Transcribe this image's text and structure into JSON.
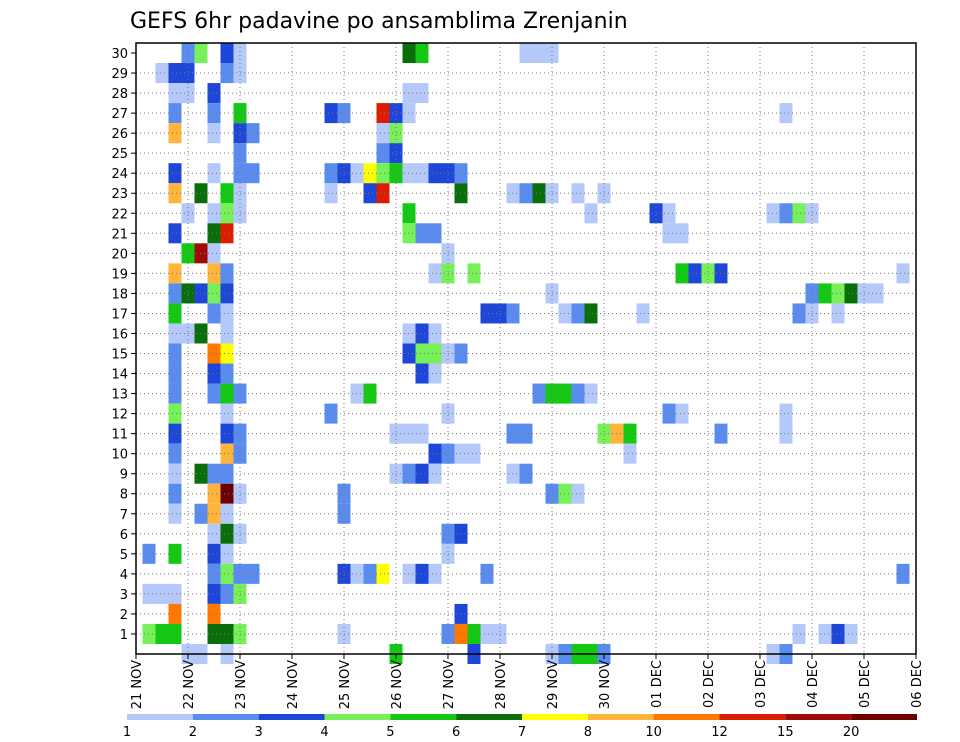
{
  "chart_data": {
    "type": "heatmap",
    "title": "GEFS 6hr padavine po ansamblima Zrenjanin",
    "xlabel": "",
    "ylabel": "",
    "x_labels": [
      "21 NOV",
      "22 NOV",
      "23 NOV",
      "24 NOV",
      "25 NOV",
      "26 NOV",
      "27 NOV",
      "28 NOV",
      "29 NOV",
      "30 NOV",
      "01 DEC",
      "02 DEC",
      "03 DEC",
      "04 DEC",
      "05 DEC",
      "06 DEC"
    ],
    "y_labels": [
      "1",
      "2",
      "3",
      "4",
      "5",
      "6",
      "7",
      "8",
      "9",
      "10",
      "11",
      "12",
      "13",
      "14",
      "15",
      "16",
      "17",
      "18",
      "19",
      "20",
      "21",
      "22",
      "23",
      "24",
      "25",
      "26",
      "27",
      "28",
      "29",
      "30"
    ],
    "time_steps_per_day": 4,
    "grid": true,
    "colorbar": {
      "labels": [
        "1",
        "2",
        "3",
        "4",
        "5",
        "6",
        "7",
        "8",
        "10",
        "12",
        "15",
        "20"
      ],
      "colors": [
        "#b4c8fa",
        "#5a8cf0",
        "#1e46d7",
        "#78f05a",
        "#14c814",
        "#0a6e0a",
        "#ffff00",
        "#ffb43c",
        "#ff7800",
        "#dc1e00",
        "#a00a0a",
        "#6e0000"
      ]
    },
    "cells": [
      {
        "m": 30,
        "t": 4,
        "c": 2
      },
      {
        "m": 30,
        "t": 5,
        "c": 4
      },
      {
        "m": 30,
        "t": 7,
        "c": 3
      },
      {
        "m": 30,
        "t": 8,
        "c": 1
      },
      {
        "m": 30,
        "t": 21,
        "c": 6
      },
      {
        "m": 30,
        "t": 22,
        "c": 5
      },
      {
        "m": 30,
        "t": 30,
        "c": 1
      },
      {
        "m": 30,
        "t": 31,
        "c": 1
      },
      {
        "m": 30,
        "t": 32,
        "c": 1
      },
      {
        "m": 29,
        "t": 2,
        "c": 1
      },
      {
        "m": 29,
        "t": 3,
        "c": 3
      },
      {
        "m": 29,
        "t": 4,
        "c": 3
      },
      {
        "m": 29,
        "t": 7,
        "c": 2
      },
      {
        "m": 29,
        "t": 8,
        "c": 1
      },
      {
        "m": 28,
        "t": 3,
        "c": 1
      },
      {
        "m": 28,
        "t": 4,
        "c": 1
      },
      {
        "m": 28,
        "t": 6,
        "c": 3
      },
      {
        "m": 28,
        "t": 21,
        "c": 1
      },
      {
        "m": 28,
        "t": 22,
        "c": 1
      },
      {
        "m": 27,
        "t": 3,
        "c": 2
      },
      {
        "m": 27,
        "t": 6,
        "c": 2
      },
      {
        "m": 27,
        "t": 8,
        "c": 5
      },
      {
        "m": 27,
        "t": 15,
        "c": 3
      },
      {
        "m": 27,
        "t": 16,
        "c": 2
      },
      {
        "m": 27,
        "t": 19,
        "c": 10
      },
      {
        "m": 27,
        "t": 20,
        "c": 3
      },
      {
        "m": 27,
        "t": 21,
        "c": 1
      },
      {
        "m": 27,
        "t": 50,
        "c": 1
      },
      {
        "m": 26,
        "t": 3,
        "c": 8
      },
      {
        "m": 26,
        "t": 6,
        "c": 1
      },
      {
        "m": 26,
        "t": 8,
        "c": 3
      },
      {
        "m": 26,
        "t": 9,
        "c": 2
      },
      {
        "m": 26,
        "t": 19,
        "c": 1
      },
      {
        "m": 26,
        "t": 20,
        "c": 4
      },
      {
        "m": 25,
        "t": 8,
        "c": 2
      },
      {
        "m": 25,
        "t": 19,
        "c": 2
      },
      {
        "m": 25,
        "t": 20,
        "c": 3
      },
      {
        "m": 24,
        "t": 3,
        "c": 3
      },
      {
        "m": 24,
        "t": 6,
        "c": 1
      },
      {
        "m": 24,
        "t": 8,
        "c": 2
      },
      {
        "m": 24,
        "t": 9,
        "c": 2
      },
      {
        "m": 24,
        "t": 15,
        "c": 2
      },
      {
        "m": 24,
        "t": 16,
        "c": 3
      },
      {
        "m": 24,
        "t": 17,
        "c": 1
      },
      {
        "m": 24,
        "t": 18,
        "c": 7
      },
      {
        "m": 24,
        "t": 19,
        "c": 4
      },
      {
        "m": 24,
        "t": 20,
        "c": 5
      },
      {
        "m": 24,
        "t": 21,
        "c": 1
      },
      {
        "m": 24,
        "t": 22,
        "c": 1
      },
      {
        "m": 24,
        "t": 23,
        "c": 3
      },
      {
        "m": 24,
        "t": 24,
        "c": 3
      },
      {
        "m": 24,
        "t": 25,
        "c": 2
      },
      {
        "m": 23,
        "t": 3,
        "c": 8
      },
      {
        "m": 23,
        "t": 5,
        "c": 6
      },
      {
        "m": 23,
        "t": 7,
        "c": 5
      },
      {
        "m": 23,
        "t": 8,
        "c": 1
      },
      {
        "m": 23,
        "t": 15,
        "c": 1
      },
      {
        "m": 23,
        "t": 18,
        "c": 3
      },
      {
        "m": 23,
        "t": 19,
        "c": 10
      },
      {
        "m": 23,
        "t": 25,
        "c": 6
      },
      {
        "m": 23,
        "t": 29,
        "c": 1
      },
      {
        "m": 23,
        "t": 30,
        "c": 2
      },
      {
        "m": 23,
        "t": 31,
        "c": 6
      },
      {
        "m": 23,
        "t": 32,
        "c": 1
      },
      {
        "m": 23,
        "t": 34,
        "c": 1
      },
      {
        "m": 23,
        "t": 36,
        "c": 1
      },
      {
        "m": 22,
        "t": 4,
        "c": 1
      },
      {
        "m": 22,
        "t": 6,
        "c": 1
      },
      {
        "m": 22,
        "t": 7,
        "c": 4
      },
      {
        "m": 22,
        "t": 8,
        "c": 1
      },
      {
        "m": 22,
        "t": 21,
        "c": 5
      },
      {
        "m": 22,
        "t": 35,
        "c": 1
      },
      {
        "m": 22,
        "t": 40,
        "c": 3
      },
      {
        "m": 22,
        "t": 41,
        "c": 1
      },
      {
        "m": 22,
        "t": 49,
        "c": 1
      },
      {
        "m": 22,
        "t": 50,
        "c": 2
      },
      {
        "m": 22,
        "t": 51,
        "c": 4
      },
      {
        "m": 22,
        "t": 52,
        "c": 1
      },
      {
        "m": 21,
        "t": 3,
        "c": 3
      },
      {
        "m": 21,
        "t": 6,
        "c": 6
      },
      {
        "m": 21,
        "t": 7,
        "c": 10
      },
      {
        "m": 21,
        "t": 21,
        "c": 4
      },
      {
        "m": 21,
        "t": 22,
        "c": 2
      },
      {
        "m": 21,
        "t": 23,
        "c": 2
      },
      {
        "m": 21,
        "t": 41,
        "c": 1
      },
      {
        "m": 21,
        "t": 42,
        "c": 1
      },
      {
        "m": 20,
        "t": 4,
        "c": 5
      },
      {
        "m": 20,
        "t": 5,
        "c": 11
      },
      {
        "m": 20,
        "t": 6,
        "c": 1
      },
      {
        "m": 20,
        "t": 24,
        "c": 1
      },
      {
        "m": 19,
        "t": 3,
        "c": 8
      },
      {
        "m": 19,
        "t": 6,
        "c": 8
      },
      {
        "m": 19,
        "t": 7,
        "c": 2
      },
      {
        "m": 19,
        "t": 23,
        "c": 1
      },
      {
        "m": 19,
        "t": 24,
        "c": 4
      },
      {
        "m": 19,
        "t": 26,
        "c": 4
      },
      {
        "m": 19,
        "t": 42,
        "c": 5
      },
      {
        "m": 19,
        "t": 43,
        "c": 3
      },
      {
        "m": 19,
        "t": 44,
        "c": 4
      },
      {
        "m": 19,
        "t": 45,
        "c": 3
      },
      {
        "m": 19,
        "t": 59,
        "c": 1
      },
      {
        "m": 18,
        "t": 3,
        "c": 2
      },
      {
        "m": 18,
        "t": 4,
        "c": 6
      },
      {
        "m": 18,
        "t": 5,
        "c": 3
      },
      {
        "m": 18,
        "t": 6,
        "c": 4
      },
      {
        "m": 18,
        "t": 7,
        "c": 3
      },
      {
        "m": 18,
        "t": 32,
        "c": 1
      },
      {
        "m": 18,
        "t": 52,
        "c": 2
      },
      {
        "m": 18,
        "t": 53,
        "c": 5
      },
      {
        "m": 18,
        "t": 54,
        "c": 4
      },
      {
        "m": 18,
        "t": 55,
        "c": 6
      },
      {
        "m": 18,
        "t": 56,
        "c": 1
      },
      {
        "m": 18,
        "t": 57,
        "c": 1
      },
      {
        "m": 17,
        "t": 3,
        "c": 5
      },
      {
        "m": 17,
        "t": 6,
        "c": 2
      },
      {
        "m": 17,
        "t": 7,
        "c": 1
      },
      {
        "m": 17,
        "t": 27,
        "c": 3
      },
      {
        "m": 17,
        "t": 28,
        "c": 3
      },
      {
        "m": 17,
        "t": 29,
        "c": 2
      },
      {
        "m": 17,
        "t": 33,
        "c": 1
      },
      {
        "m": 17,
        "t": 34,
        "c": 2
      },
      {
        "m": 17,
        "t": 35,
        "c": 6
      },
      {
        "m": 17,
        "t": 39,
        "c": 1
      },
      {
        "m": 17,
        "t": 51,
        "c": 2
      },
      {
        "m": 17,
        "t": 52,
        "c": 1
      },
      {
        "m": 17,
        "t": 54,
        "c": 1
      },
      {
        "m": 16,
        "t": 3,
        "c": 1
      },
      {
        "m": 16,
        "t": 4,
        "c": 1
      },
      {
        "m": 16,
        "t": 5,
        "c": 6
      },
      {
        "m": 16,
        "t": 7,
        "c": 1
      },
      {
        "m": 16,
        "t": 21,
        "c": 1
      },
      {
        "m": 16,
        "t": 22,
        "c": 3
      },
      {
        "m": 16,
        "t": 23,
        "c": 1
      },
      {
        "m": 15,
        "t": 3,
        "c": 2
      },
      {
        "m": 15,
        "t": 6,
        "c": 9
      },
      {
        "m": 15,
        "t": 7,
        "c": 7
      },
      {
        "m": 15,
        "t": 21,
        "c": 3
      },
      {
        "m": 15,
        "t": 22,
        "c": 4
      },
      {
        "m": 15,
        "t": 23,
        "c": 4
      },
      {
        "m": 15,
        "t": 24,
        "c": 1
      },
      {
        "m": 15,
        "t": 25,
        "c": 2
      },
      {
        "m": 14,
        "t": 3,
        "c": 2
      },
      {
        "m": 14,
        "t": 6,
        "c": 3
      },
      {
        "m": 14,
        "t": 7,
        "c": 2
      },
      {
        "m": 14,
        "t": 22,
        "c": 3
      },
      {
        "m": 14,
        "t": 23,
        "c": 1
      },
      {
        "m": 13,
        "t": 3,
        "c": 2
      },
      {
        "m": 13,
        "t": 6,
        "c": 2
      },
      {
        "m": 13,
        "t": 7,
        "c": 5
      },
      {
        "m": 13,
        "t": 8,
        "c": 2
      },
      {
        "m": 13,
        "t": 17,
        "c": 1
      },
      {
        "m": 13,
        "t": 18,
        "c": 5
      },
      {
        "m": 13,
        "t": 31,
        "c": 2
      },
      {
        "m": 13,
        "t": 32,
        "c": 5
      },
      {
        "m": 13,
        "t": 33,
        "c": 5
      },
      {
        "m": 13,
        "t": 34,
        "c": 2
      },
      {
        "m": 13,
        "t": 35,
        "c": 1
      },
      {
        "m": 12,
        "t": 3,
        "c": 4
      },
      {
        "m": 12,
        "t": 7,
        "c": 1
      },
      {
        "m": 12,
        "t": 15,
        "c": 2
      },
      {
        "m": 12,
        "t": 24,
        "c": 1
      },
      {
        "m": 12,
        "t": 41,
        "c": 2
      },
      {
        "m": 12,
        "t": 42,
        "c": 1
      },
      {
        "m": 12,
        "t": 50,
        "c": 1
      },
      {
        "m": 11,
        "t": 3,
        "c": 3
      },
      {
        "m": 11,
        "t": 7,
        "c": 3
      },
      {
        "m": 11,
        "t": 8,
        "c": 2
      },
      {
        "m": 11,
        "t": 20,
        "c": 1
      },
      {
        "m": 11,
        "t": 21,
        "c": 1
      },
      {
        "m": 11,
        "t": 22,
        "c": 1
      },
      {
        "m": 11,
        "t": 29,
        "c": 2
      },
      {
        "m": 11,
        "t": 30,
        "c": 2
      },
      {
        "m": 11,
        "t": 36,
        "c": 4
      },
      {
        "m": 11,
        "t": 37,
        "c": 8
      },
      {
        "m": 11,
        "t": 38,
        "c": 5
      },
      {
        "m": 11,
        "t": 45,
        "c": 2
      },
      {
        "m": 11,
        "t": 50,
        "c": 1
      },
      {
        "m": 10,
        "t": 3,
        "c": 2
      },
      {
        "m": 10,
        "t": 7,
        "c": 8
      },
      {
        "m": 10,
        "t": 8,
        "c": 2
      },
      {
        "m": 10,
        "t": 23,
        "c": 3
      },
      {
        "m": 10,
        "t": 24,
        "c": 2
      },
      {
        "m": 10,
        "t": 25,
        "c": 1
      },
      {
        "m": 10,
        "t": 26,
        "c": 1
      },
      {
        "m": 10,
        "t": 38,
        "c": 1
      },
      {
        "m": 9,
        "t": 3,
        "c": 1
      },
      {
        "m": 9,
        "t": 5,
        "c": 6
      },
      {
        "m": 9,
        "t": 6,
        "c": 2
      },
      {
        "m": 9,
        "t": 7,
        "c": 2
      },
      {
        "m": 9,
        "t": 20,
        "c": 1
      },
      {
        "m": 9,
        "t": 21,
        "c": 2
      },
      {
        "m": 9,
        "t": 22,
        "c": 3
      },
      {
        "m": 9,
        "t": 23,
        "c": 1
      },
      {
        "m": 9,
        "t": 29,
        "c": 1
      },
      {
        "m": 9,
        "t": 30,
        "c": 2
      },
      {
        "m": 8,
        "t": 3,
        "c": 2
      },
      {
        "m": 8,
        "t": 6,
        "c": 8
      },
      {
        "m": 8,
        "t": 7,
        "c": 12
      },
      {
        "m": 8,
        "t": 8,
        "c": 1
      },
      {
        "m": 8,
        "t": 16,
        "c": 2
      },
      {
        "m": 8,
        "t": 32,
        "c": 2
      },
      {
        "m": 8,
        "t": 33,
        "c": 4
      },
      {
        "m": 8,
        "t": 34,
        "c": 1
      },
      {
        "m": 7,
        "t": 3,
        "c": 1
      },
      {
        "m": 7,
        "t": 5,
        "c": 2
      },
      {
        "m": 7,
        "t": 6,
        "c": 8
      },
      {
        "m": 7,
        "t": 7,
        "c": 1
      },
      {
        "m": 7,
        "t": 16,
        "c": 2
      },
      {
        "m": 6,
        "t": 6,
        "c": 1
      },
      {
        "m": 6,
        "t": 7,
        "c": 6
      },
      {
        "m": 6,
        "t": 8,
        "c": 1
      },
      {
        "m": 6,
        "t": 24,
        "c": 2
      },
      {
        "m": 6,
        "t": 25,
        "c": 3
      },
      {
        "m": 5,
        "t": 1,
        "c": 2
      },
      {
        "m": 5,
        "t": 3,
        "c": 5
      },
      {
        "m": 5,
        "t": 6,
        "c": 3
      },
      {
        "m": 5,
        "t": 7,
        "c": 1
      },
      {
        "m": 5,
        "t": 24,
        "c": 1
      },
      {
        "m": 4,
        "t": 6,
        "c": 2
      },
      {
        "m": 4,
        "t": 7,
        "c": 4
      },
      {
        "m": 4,
        "t": 8,
        "c": 2
      },
      {
        "m": 4,
        "t": 9,
        "c": 2
      },
      {
        "m": 4,
        "t": 16,
        "c": 3
      },
      {
        "m": 4,
        "t": 17,
        "c": 1
      },
      {
        "m": 4,
        "t": 18,
        "c": 2
      },
      {
        "m": 4,
        "t": 19,
        "c": 7
      },
      {
        "m": 4,
        "t": 21,
        "c": 1
      },
      {
        "m": 4,
        "t": 22,
        "c": 3
      },
      {
        "m": 4,
        "t": 23,
        "c": 1
      },
      {
        "m": 4,
        "t": 27,
        "c": 2
      },
      {
        "m": 4,
        "t": 59,
        "c": 2
      },
      {
        "m": 3,
        "t": 1,
        "c": 1
      },
      {
        "m": 3,
        "t": 2,
        "c": 1
      },
      {
        "m": 3,
        "t": 3,
        "c": 1
      },
      {
        "m": 3,
        "t": 6,
        "c": 3
      },
      {
        "m": 3,
        "t": 7,
        "c": 2
      },
      {
        "m": 3,
        "t": 8,
        "c": 4
      },
      {
        "m": 2,
        "t": 3,
        "c": 9
      },
      {
        "m": 2,
        "t": 6,
        "c": 9
      },
      {
        "m": 2,
        "t": 25,
        "c": 3
      },
      {
        "m": 1,
        "t": 1,
        "c": 4
      },
      {
        "m": 1,
        "t": 2,
        "c": 5
      },
      {
        "m": 1,
        "t": 3,
        "c": 5
      },
      {
        "m": 1,
        "t": 6,
        "c": 6
      },
      {
        "m": 1,
        "t": 7,
        "c": 6
      },
      {
        "m": 1,
        "t": 8,
        "c": 4
      },
      {
        "m": 1,
        "t": 16,
        "c": 1
      },
      {
        "m": 1,
        "t": 24,
        "c": 2
      },
      {
        "m": 1,
        "t": 25,
        "c": 9
      },
      {
        "m": 1,
        "t": 26,
        "c": 5
      },
      {
        "m": 1,
        "t": 27,
        "c": 1
      },
      {
        "m": 1,
        "t": 28,
        "c": 1
      },
      {
        "m": 1,
        "t": 51,
        "c": 1
      },
      {
        "m": 1,
        "t": 53,
        "c": 1
      },
      {
        "m": 1,
        "t": 54,
        "c": 3
      },
      {
        "m": 1,
        "t": 55,
        "c": 1
      },
      {
        "m": 0,
        "t": 4,
        "c": 1
      },
      {
        "m": 0,
        "t": 5,
        "c": 1
      },
      {
        "m": 0,
        "t": 7,
        "c": 1
      },
      {
        "m": 0,
        "t": 20,
        "c": 5
      },
      {
        "m": 0,
        "t": 26,
        "c": 3
      },
      {
        "m": 0,
        "t": 32,
        "c": 1
      },
      {
        "m": 0,
        "t": 33,
        "c": 2
      },
      {
        "m": 0,
        "t": 34,
        "c": 5
      },
      {
        "m": 0,
        "t": 35,
        "c": 5
      },
      {
        "m": 0,
        "t": 36,
        "c": 2
      },
      {
        "m": 0,
        "t": 49,
        "c": 1
      },
      {
        "m": 0,
        "t": 50,
        "c": 2
      }
    ]
  }
}
